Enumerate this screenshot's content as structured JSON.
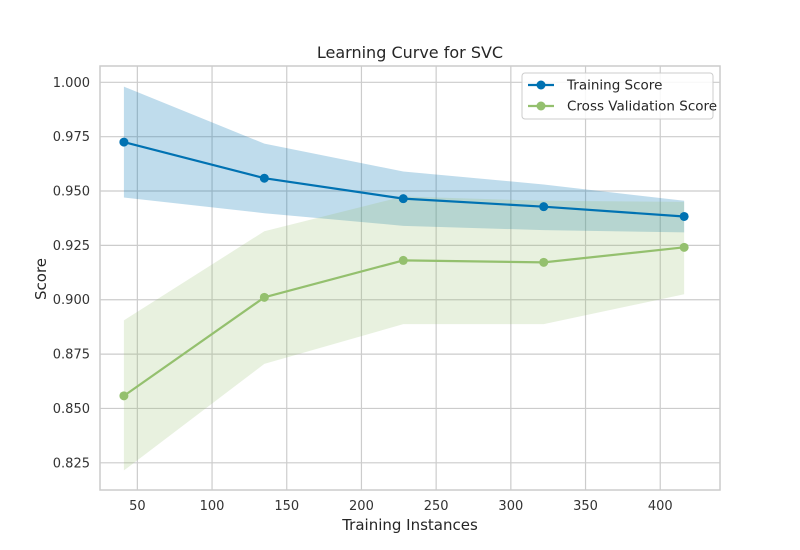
{
  "chart_data": {
    "type": "line",
    "title": "Learning Curve for SVC",
    "xlabel": "Training Instances",
    "ylabel": "Score",
    "xlim": [
      25,
      440
    ],
    "ylim": [
      0.8125,
      1.0075
    ],
    "xticks": [
      50,
      100,
      150,
      200,
      250,
      300,
      350,
      400
    ],
    "yticks": [
      0.825,
      0.85,
      0.875,
      0.9,
      0.925,
      0.95,
      0.975,
      1.0
    ],
    "ytick_labels": [
      "0.825",
      "0.850",
      "0.875",
      "0.900",
      "0.925",
      "0.950",
      "0.975",
      "1.000"
    ],
    "grid": true,
    "legend_position": "top-right",
    "x": [
      41,
      135,
      228,
      322,
      416
    ],
    "series": [
      {
        "name": "Training Score",
        "color": "#0072b2",
        "values": [
          0.9725,
          0.9559,
          0.9465,
          0.9428,
          0.9383
        ],
        "band_upper": [
          0.998,
          0.9718,
          0.959,
          0.953,
          0.9455
        ],
        "band_lower": [
          0.947,
          0.9398,
          0.934,
          0.932,
          0.931
        ]
      },
      {
        "name": "Cross Validation Score",
        "color": "#94c06e",
        "values": [
          0.8558,
          0.9011,
          0.9181,
          0.9172,
          0.9241
        ],
        "band_upper": [
          0.8905,
          0.9315,
          0.9475,
          0.9455,
          0.945
        ],
        "band_lower": [
          0.8215,
          0.8705,
          0.8888,
          0.8888,
          0.9025
        ]
      }
    ]
  }
}
